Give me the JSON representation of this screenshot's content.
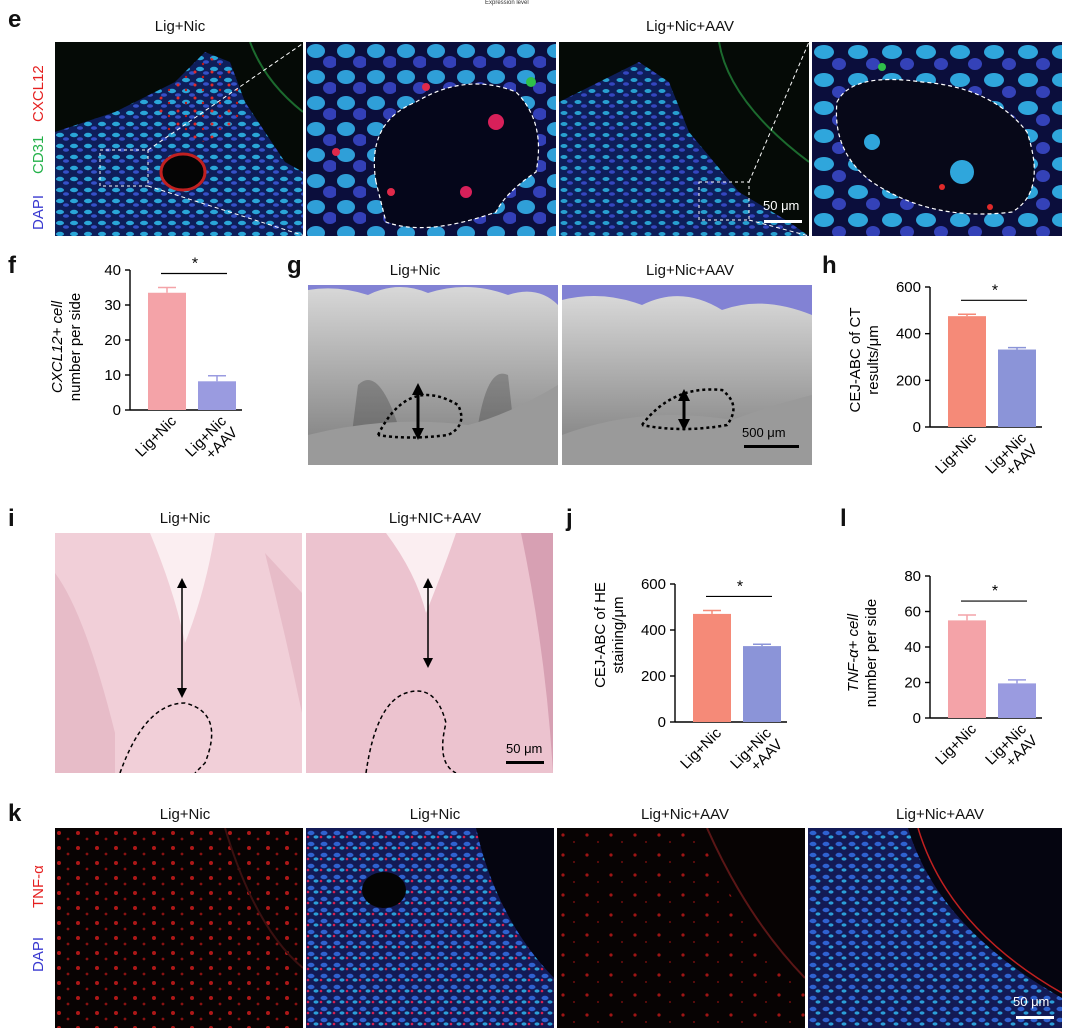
{
  "header_fragment": "Expression level",
  "panel_e": {
    "letter": "e",
    "titles": [
      "Lig+Nic",
      "Lig+Nic+AAV"
    ],
    "channels": [
      "CXCL12",
      "CD31",
      "DAPI"
    ],
    "scalebar": "50 μm"
  },
  "panel_g": {
    "letter": "g",
    "titles": [
      "Lig+Nic",
      "Lig+Nic+AAV"
    ],
    "scalebar": "500 μm"
  },
  "panel_i": {
    "letter": "i",
    "titles": [
      "Lig+Nic",
      "Lig+NIC+AAV"
    ],
    "scalebar": "50 μm"
  },
  "panel_k": {
    "letter": "k",
    "titles": [
      "Lig+Nic",
      "Lig+Nic",
      "Lig+Nic+AAV",
      "Lig+Nic+AAV"
    ],
    "channels": [
      "TNF-α",
      "DAPI"
    ],
    "scalebar": "50 μm"
  },
  "chart_data": [
    {
      "id": "f",
      "letter": "f",
      "type": "bar",
      "categories": [
        "Lig+Nic",
        "Lig+Nic\n+AAV"
      ],
      "values": [
        33.5,
        8.2
      ],
      "errors": [
        1.5,
        1.6
      ],
      "colors": [
        "#f4a3a8",
        "#9a9be0"
      ],
      "ylabel_lines": [
        "CXCL12+ cell",
        "number per side"
      ],
      "ylim": [
        0,
        40
      ],
      "ticks": [
        0,
        10,
        20,
        30,
        40
      ],
      "significance": "*"
    },
    {
      "id": "h",
      "letter": "h",
      "type": "bar",
      "categories": [
        "Lig+Nic",
        "Lig+Nic\n+AAV"
      ],
      "values": [
        475,
        332
      ],
      "errors": [
        8,
        8
      ],
      "colors": [
        "#f58a78",
        "#8b94d8"
      ],
      "ylabel_lines": [
        "CEJ-ABC of CT",
        "results/μm"
      ],
      "ylim": [
        0,
        600
      ],
      "ticks": [
        0,
        200,
        400,
        600
      ],
      "significance": "*"
    },
    {
      "id": "j",
      "letter": "j",
      "type": "bar",
      "categories": [
        "Lig+Nic",
        "Lig+Nic\n+AAV"
      ],
      "values": [
        470,
        330
      ],
      "errors": [
        15,
        8
      ],
      "colors": [
        "#f58a78",
        "#8b94d8"
      ],
      "ylabel_lines": [
        "CEJ-ABC of HE",
        "staining/μm"
      ],
      "ylim": [
        0,
        600
      ],
      "ticks": [
        0,
        200,
        400,
        600
      ],
      "significance": "*"
    },
    {
      "id": "l",
      "letter": "l",
      "type": "bar",
      "categories": [
        "Lig+Nic",
        "Lig+Nic\n+AAV"
      ],
      "values": [
        55,
        19.5
      ],
      "errors": [
        3,
        2
      ],
      "colors": [
        "#f4a3a8",
        "#9a9be0"
      ],
      "ylabel_lines": [
        "TNF-α+ cell",
        "number per side"
      ],
      "ylim": [
        0,
        80
      ],
      "ticks": [
        0,
        20,
        40,
        60,
        80
      ],
      "significance": "*"
    }
  ]
}
